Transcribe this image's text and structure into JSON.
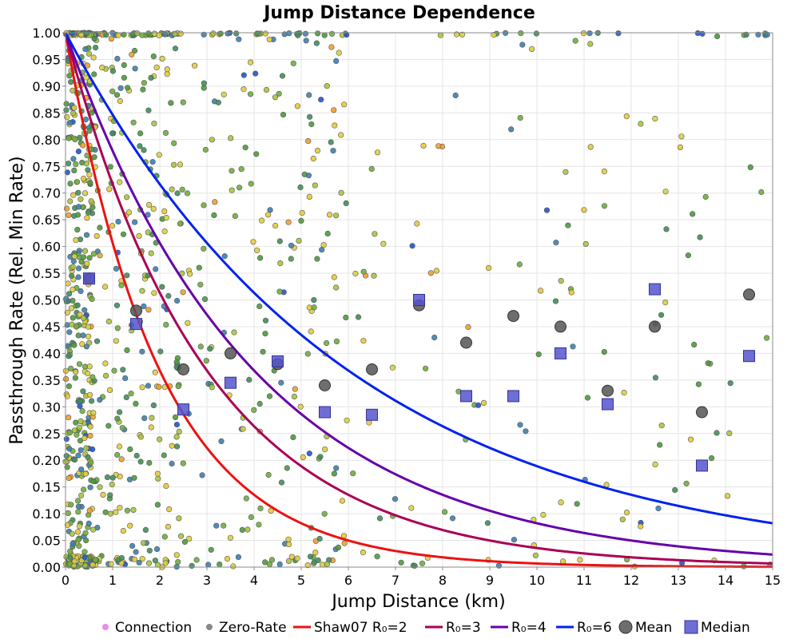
{
  "chart_data": {
    "type": "scatter",
    "title": "Jump Distance Dependence",
    "xlabel": "Jump Distance (km)",
    "ylabel": "Passthrough Rate (Rel. Min Rate)",
    "xlim": [
      0,
      15
    ],
    "ylim": [
      0,
      1
    ],
    "x_ticks": [
      "0",
      "1",
      "2",
      "3",
      "4",
      "5",
      "6",
      "7",
      "8",
      "9",
      "10",
      "11",
      "12",
      "13",
      "14",
      "15"
    ],
    "y_ticks": [
      "0.00",
      "0.05",
      "0.10",
      "0.15",
      "0.20",
      "0.25",
      "0.30",
      "0.35",
      "0.40",
      "0.45",
      "0.50",
      "0.55",
      "0.60",
      "0.65",
      "0.70",
      "0.75",
      "0.80",
      "0.85",
      "0.90",
      "0.95",
      "1.00"
    ],
    "grid": true,
    "legend_placement": "bottom",
    "curves": [
      {
        "name": "Shaw07 R₀=2",
        "r0": 2,
        "color": "#ee1111"
      },
      {
        "name": "R₀=3",
        "r0": 3,
        "color": "#aa0055"
      },
      {
        "name": "R₀=4",
        "r0": 4,
        "color": "#6600aa"
      },
      {
        "name": "R₀=6",
        "r0": 6,
        "color": "#0022ee"
      }
    ],
    "scatter_series": [
      {
        "name": "Connection",
        "color": "#ee88ee"
      },
      {
        "name": "Zero-Rate",
        "color": "#888888"
      }
    ],
    "mean": {
      "name": "Mean",
      "color": "#555555",
      "x": [
        0.5,
        1.5,
        2.5,
        3.5,
        4.5,
        5.5,
        6.5,
        7.5,
        8.5,
        9.5,
        10.5,
        11.5,
        12.5,
        13.5,
        14.5
      ],
      "y": [
        0.54,
        0.48,
        0.37,
        0.4,
        0.38,
        0.34,
        0.37,
        0.49,
        0.42,
        0.47,
        0.45,
        0.33,
        0.45,
        0.29,
        0.51
      ]
    },
    "median": {
      "name": "Median",
      "color": "#5555cc",
      "x": [
        0.5,
        1.5,
        2.5,
        3.5,
        4.5,
        5.5,
        6.5,
        7.5,
        8.5,
        9.5,
        10.5,
        11.5,
        12.5,
        13.5,
        14.5
      ],
      "y": [
        0.54,
        0.455,
        0.295,
        0.345,
        0.385,
        0.29,
        0.285,
        0.5,
        0.32,
        0.32,
        0.4,
        0.305,
        0.52,
        0.19,
        0.395
      ]
    }
  }
}
